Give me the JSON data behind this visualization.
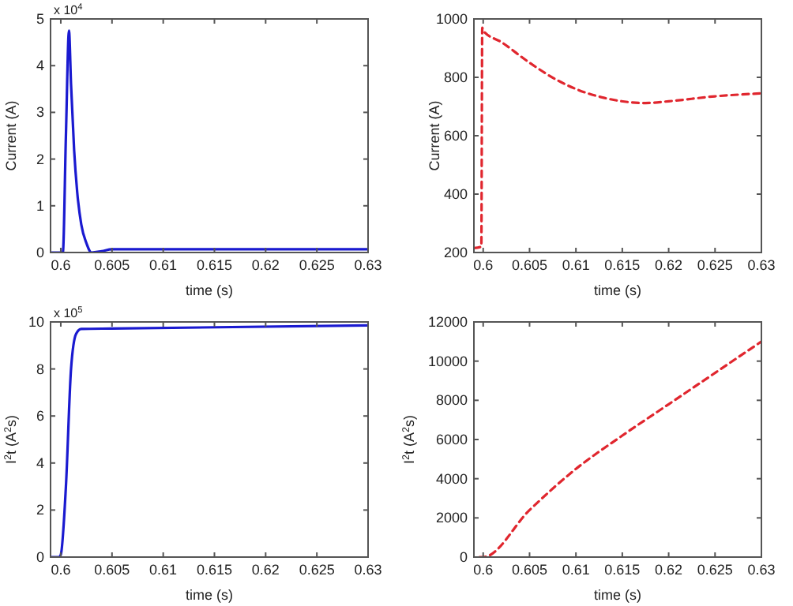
{
  "chart_data": [
    {
      "type": "line",
      "xlabel": "time (s)",
      "ylabel": "Current (A)",
      "annotations": [
        "x 10$^{4}$"
      ],
      "xlim": [
        0.599,
        0.63
      ],
      "xticks": [
        0.6,
        0.605,
        0.61,
        0.615,
        0.62,
        0.625,
        0.63
      ],
      "ylim": [
        0,
        5
      ],
      "yticks": [
        0,
        1,
        2,
        3,
        4,
        5
      ],
      "line_style": "solid",
      "x": [
        0.599,
        0.6002,
        0.6005,
        0.6008,
        0.601,
        0.6013,
        0.6016,
        0.602,
        0.6025,
        0.603,
        0.604,
        0.605,
        0.61,
        0.63
      ],
      "series": [
        {
          "color": "#1a1ad0",
          "values": [
            0,
            0,
            2.5,
            4.75,
            3.6,
            2.2,
            1.3,
            0.6,
            0.2,
            0,
            0.03,
            0.07,
            0.07,
            0.07
          ]
        }
      ]
    },
    {
      "type": "line",
      "xlabel": "time (s)",
      "ylabel": "Current (A)",
      "xlim": [
        0.599,
        0.63
      ],
      "xticks": [
        0.6,
        0.605,
        0.61,
        0.615,
        0.62,
        0.625,
        0.63
      ],
      "ylim": [
        200,
        1000
      ],
      "yticks": [
        200,
        400,
        600,
        800,
        1000
      ],
      "line_style": "dashed",
      "x": [
        0.599,
        0.5998,
        0.5999,
        0.6,
        0.602,
        0.605,
        0.608,
        0.61,
        0.613,
        0.6175,
        0.62,
        0.625,
        0.63
      ],
      "series": [
        {
          "color": "#e0262e",
          "values": [
            215,
            220,
            970,
            960,
            920,
            850,
            790,
            760,
            730,
            712,
            718,
            735,
            745
          ]
        }
      ]
    },
    {
      "type": "line",
      "xlabel": "time (s)",
      "ylabel": "I$^{2}$t (A$^{2}$s)",
      "annotations": [
        "x 10$^{5}$"
      ],
      "xlim": [
        0.599,
        0.63
      ],
      "xticks": [
        0.6,
        0.605,
        0.61,
        0.615,
        0.62,
        0.625,
        0.63
      ],
      "ylim": [
        0,
        10
      ],
      "yticks": [
        0,
        2,
        4,
        6,
        8,
        10
      ],
      "line_style": "solid",
      "x": [
        0.599,
        0.5998,
        0.6,
        0.6005,
        0.601,
        0.6015,
        0.602,
        0.605,
        0.63
      ],
      "series": [
        {
          "color": "#1a1ad0",
          "values": [
            0,
            0,
            0.1,
            3,
            8,
            9.5,
            9.7,
            9.72,
            9.85
          ]
        }
      ]
    },
    {
      "type": "line",
      "xlabel": "time (s)",
      "ylabel": "I$^{2}$t (A$^{2}$s)",
      "xlim": [
        0.599,
        0.63
      ],
      "xticks": [
        0.6,
        0.605,
        0.61,
        0.615,
        0.62,
        0.625,
        0.63
      ],
      "ylim": [
        0,
        12000
      ],
      "yticks": [
        0,
        2000,
        4000,
        6000,
        8000,
        10000,
        12000
      ],
      "line_style": "dashed",
      "x": [
        0.5996,
        0.6,
        0.605,
        0.61,
        0.615,
        0.62,
        0.625,
        0.63
      ],
      "series": [
        {
          "color": "#e0262e",
          "values": [
            0,
            0,
            2400,
            4500,
            6200,
            7800,
            9400,
            11000
          ]
        }
      ]
    }
  ]
}
